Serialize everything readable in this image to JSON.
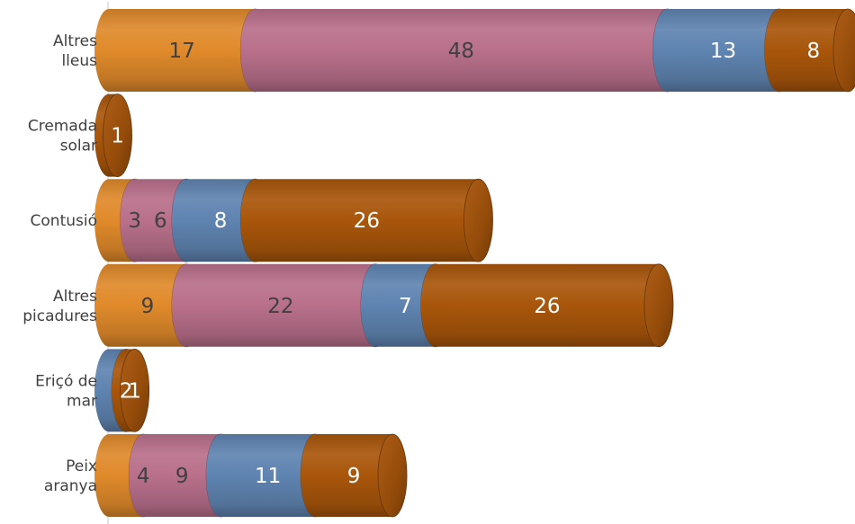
{
  "chart_data": {
    "type": "bar",
    "orientation": "horizontal",
    "stacked": true,
    "style": "3d-cylinder",
    "categories": [
      [
        "Altres",
        "lleus"
      ],
      [
        "Cremada",
        "solar"
      ],
      [
        "Contusió"
      ],
      [
        "Altres",
        "picadures"
      ],
      [
        "Eriçó de",
        "mar"
      ],
      [
        "Peix",
        "aranya"
      ]
    ],
    "series": [
      {
        "color": "#E08A2B",
        "text_color": "#404040",
        "values": [
          17,
          0,
          3,
          9,
          0,
          4
        ]
      },
      {
        "color": "#B9708B",
        "text_color": "#404040",
        "values": [
          48,
          0,
          6,
          22,
          0,
          9
        ]
      },
      {
        "color": "#5F84B1",
        "text_color": "#ffffff",
        "values": [
          13,
          0,
          8,
          7,
          2,
          11
        ]
      },
      {
        "color": "#A9560B",
        "text_color": "#ffffff",
        "values": [
          8,
          1,
          26,
          26,
          1,
          9
        ]
      }
    ],
    "x_range": [
      0,
      86
    ],
    "gridlines": false,
    "legend": "none",
    "title": "",
    "xlabel": "",
    "ylabel": ""
  }
}
